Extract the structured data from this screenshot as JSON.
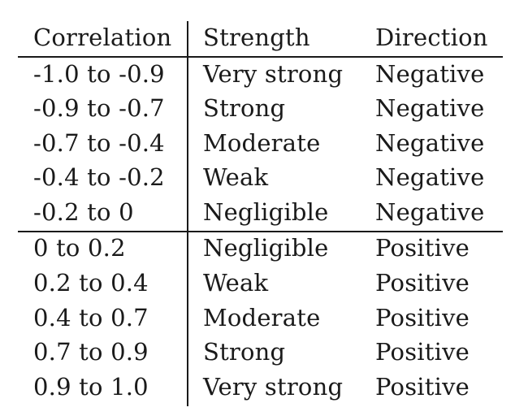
{
  "header": {
    "correlation": "Correlation",
    "strength": "Strength",
    "direction": "Direction"
  },
  "rows": [
    {
      "correlation": "-1.0 to -0.9",
      "strength": "Very strong",
      "direction": "Negative"
    },
    {
      "correlation": "-0.9 to -0.7",
      "strength": "Strong",
      "direction": "Negative"
    },
    {
      "correlation": "-0.7 to -0.4",
      "strength": "Moderate",
      "direction": "Negative"
    },
    {
      "correlation": "-0.4 to -0.2",
      "strength": "Weak",
      "direction": "Negative"
    },
    {
      "correlation": "-0.2 to 0",
      "strength": "Negligible",
      "direction": "Negative"
    },
    {
      "correlation": "0 to 0.2",
      "strength": "Negligible",
      "direction": "Positive"
    },
    {
      "correlation": "0.2 to 0.4",
      "strength": "Weak",
      "direction": "Positive"
    },
    {
      "correlation": "0.4 to 0.7",
      "strength": "Moderate",
      "direction": "Positive"
    },
    {
      "correlation": "0.7 to 0.9",
      "strength": "Strong",
      "direction": "Positive"
    },
    {
      "correlation": "0.9 to 1.0",
      "strength": "Very strong",
      "direction": "Positive"
    }
  ]
}
